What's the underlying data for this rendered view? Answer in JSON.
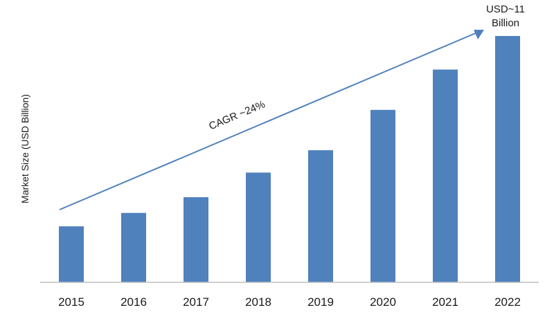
{
  "chart_data": {
    "type": "bar",
    "categories": [
      "2015",
      "2016",
      "2017",
      "2018",
      "2019",
      "2020",
      "2021",
      "2022"
    ],
    "values": [
      2.5,
      3.1,
      3.8,
      4.9,
      5.9,
      7.7,
      9.5,
      11.0
    ],
    "ylabel": "Market Size (USD Billion)",
    "xlabel": "",
    "ylim": [
      0,
      12
    ],
    "grid": false,
    "bar_color": "#4F81BD",
    "arrow_color": "#4F81BD",
    "annotations": {
      "cagr": "CAGR ~24%",
      "end_value_line1": "USD~11",
      "end_value_line2": "Billion"
    }
  }
}
